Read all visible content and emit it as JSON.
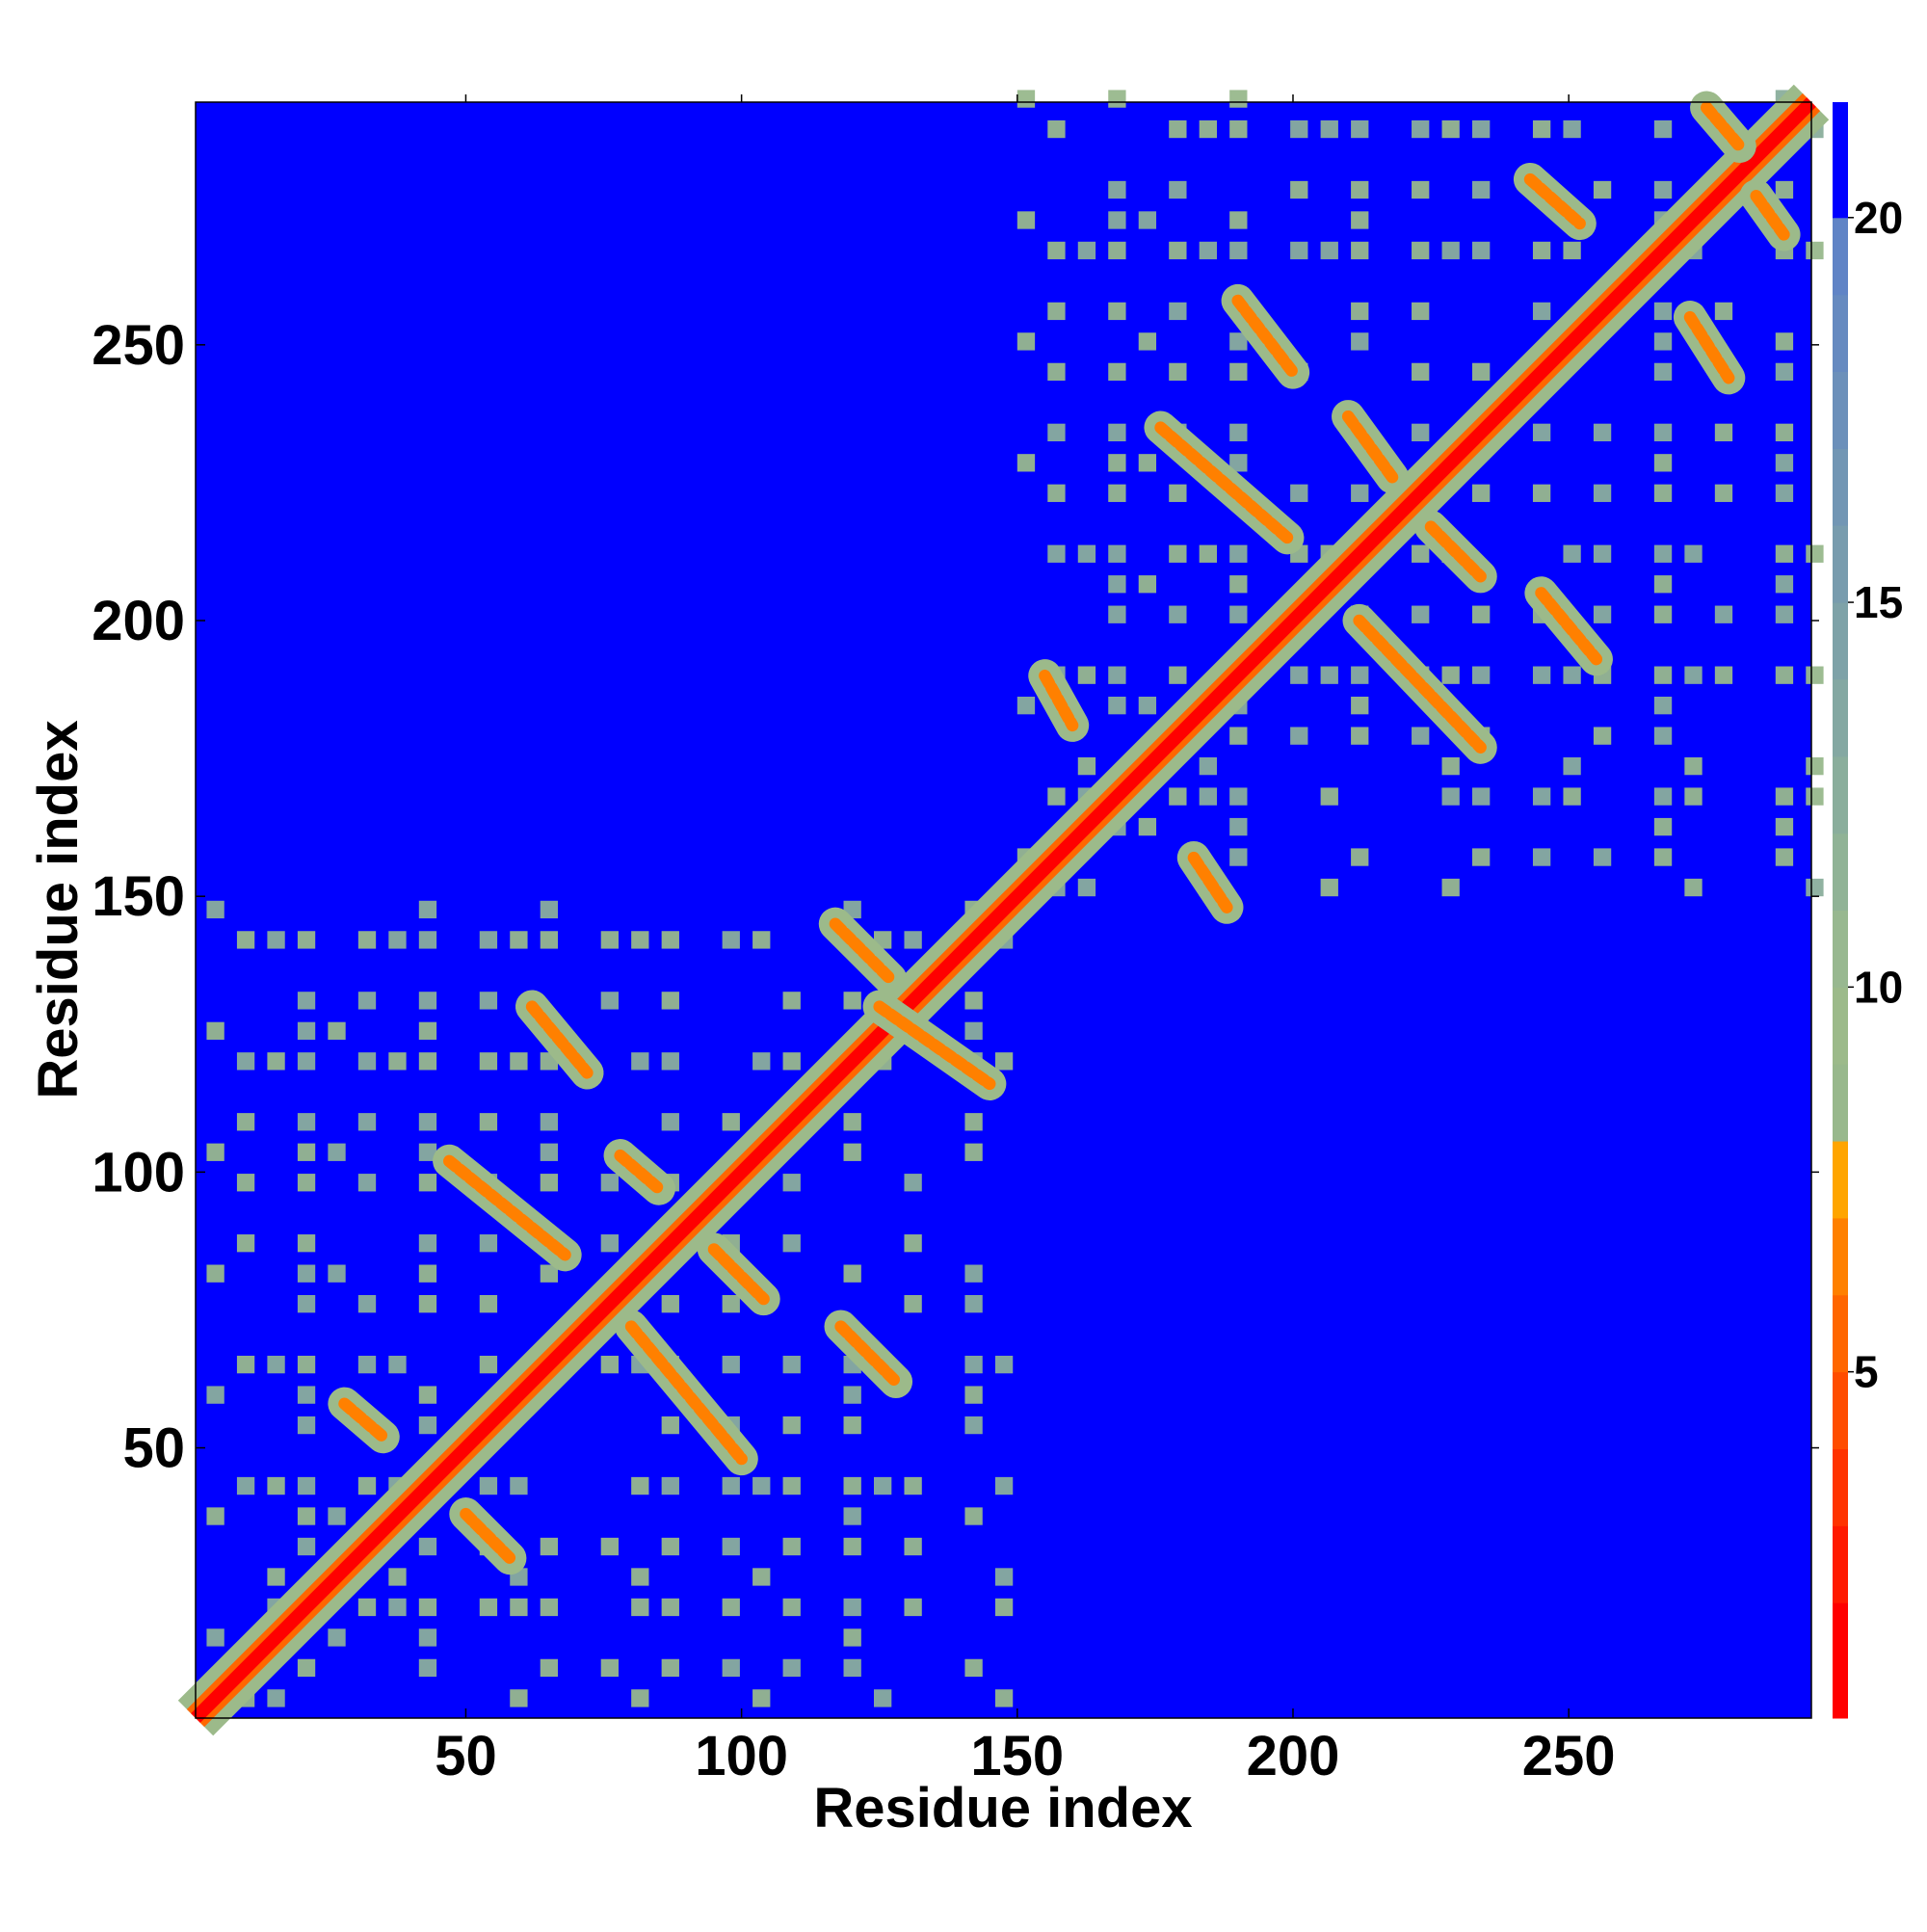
{
  "chart_data": {
    "type": "heatmap",
    "title": "",
    "xlabel": "Residue index",
    "ylabel": "Residue index",
    "xlim": [
      1,
      294
    ],
    "ylim": [
      1,
      294
    ],
    "x_ticks": [
      50,
      100,
      150,
      200,
      250
    ],
    "y_ticks": [
      50,
      100,
      150,
      200,
      250
    ],
    "colorbar": {
      "ticks": [
        5,
        10,
        15,
        20
      ],
      "range": [
        0.5,
        21.5
      ],
      "levels": [
        {
          "to": 2,
          "color": "#ff0000"
        },
        {
          "to": 3,
          "color": "#ff1a00"
        },
        {
          "to": 4,
          "color": "#ff3300"
        },
        {
          "to": 5,
          "color": "#ff4d00"
        },
        {
          "to": 6,
          "color": "#ff6600"
        },
        {
          "to": 7,
          "color": "#ff8000"
        },
        {
          "to": 8,
          "color": "#ffa500"
        },
        {
          "to": 9,
          "color": "#98b88c"
        },
        {
          "to": 10,
          "color": "#9cba8a"
        },
        {
          "to": 11,
          "color": "#98b890"
        },
        {
          "to": 12,
          "color": "#90b396"
        },
        {
          "to": 13,
          "color": "#8aae9c"
        },
        {
          "to": 14,
          "color": "#84a8a2"
        },
        {
          "to": 15,
          "color": "#7ea2a8"
        },
        {
          "to": 16,
          "color": "#789cae"
        },
        {
          "to": 17,
          "color": "#7296b4"
        },
        {
          "to": 18,
          "color": "#6c90ba"
        },
        {
          "to": 19,
          "color": "#668ac0"
        },
        {
          "to": 20,
          "color": "#6084c6"
        },
        {
          "to": 21.5,
          "color": "#0000ff"
        }
      ]
    },
    "description_of_features": {
      "diagonal": "contact distance < 5 along residue i = j",
      "domains": [
        {
          "residues": [
            1,
            147
          ]
        },
        {
          "residues": [
            148,
            294
          ]
        }
      ],
      "strand_pairs": [
        {
          "from": [
            28,
            58
          ],
          "to": [
            35,
            52
          ]
        },
        {
          "from": [
            50,
            38
          ],
          "to": [
            58,
            30
          ]
        },
        {
          "from": [
            47,
            102
          ],
          "to": [
            68,
            85
          ]
        },
        {
          "from": [
            62,
            130
          ],
          "to": [
            72,
            118
          ]
        },
        {
          "from": [
            78,
            103
          ],
          "to": [
            85,
            97
          ]
        },
        {
          "from": [
            80,
            72
          ],
          "to": [
            100,
            48
          ]
        },
        {
          "from": [
            95,
            86
          ],
          "to": [
            104,
            77
          ]
        },
        {
          "from": [
            117,
            145
          ],
          "to": [
            127,
            135
          ]
        },
        {
          "from": [
            125,
            130
          ],
          "to": [
            145,
            116
          ]
        },
        {
          "from": [
            118,
            72
          ],
          "to": [
            128,
            62
          ]
        },
        {
          "from": [
            155,
            190
          ],
          "to": [
            160,
            181
          ]
        },
        {
          "from": [
            182,
            157
          ],
          "to": [
            188,
            148
          ]
        },
        {
          "from": [
            176,
            235
          ],
          "to": [
            199,
            215
          ]
        },
        {
          "from": [
            190,
            258
          ],
          "to": [
            200,
            245
          ]
        },
        {
          "from": [
            210,
            237
          ],
          "to": [
            218,
            226
          ]
        },
        {
          "from": [
            212,
            200
          ],
          "to": [
            234,
            177
          ]
        },
        {
          "from": [
            225,
            217
          ],
          "to": [
            234,
            208
          ]
        },
        {
          "from": [
            245,
            205
          ],
          "to": [
            255,
            193
          ]
        },
        {
          "from": [
            243,
            280
          ],
          "to": [
            252,
            272
          ]
        },
        {
          "from": [
            272,
            255
          ],
          "to": [
            279,
            244
          ]
        },
        {
          "from": [
            275,
            293
          ],
          "to": [
            281,
            286
          ]
        },
        {
          "from": [
            284,
            277
          ],
          "to": [
            289,
            270
          ]
        }
      ]
    }
  }
}
